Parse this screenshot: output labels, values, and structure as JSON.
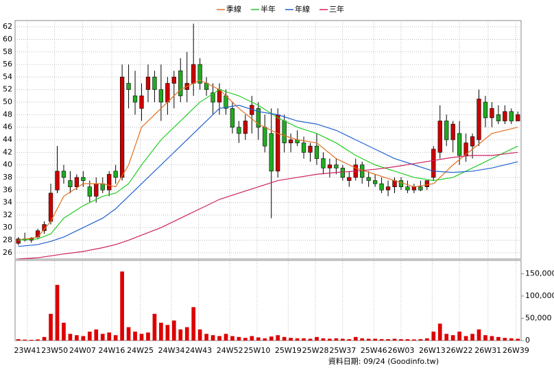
{
  "chart_data": {
    "type": "candlestick",
    "xlim": [
      -0.5,
      77.5
    ],
    "ylim": [
      25,
      63
    ],
    "yticks": [
      26,
      28,
      30,
      32,
      34,
      36,
      38,
      40,
      42,
      44,
      46,
      48,
      50,
      52,
      54,
      56,
      58,
      60,
      62
    ],
    "xticks": [
      {
        "value": 1.4,
        "label": "23W41"
      },
      {
        "value": 5.6,
        "label": "23W50"
      },
      {
        "value": 9.9,
        "label": "24W07"
      },
      {
        "value": 14.4,
        "label": "24W16"
      },
      {
        "value": 18.8,
        "label": "24W25"
      },
      {
        "value": 23.6,
        "label": "24W34"
      },
      {
        "value": 27.8,
        "label": "24W43"
      },
      {
        "value": 32.6,
        "label": "24W52"
      },
      {
        "value": 36.8,
        "label": "25W10"
      },
      {
        "value": 41.6,
        "label": "25W19"
      },
      {
        "value": 45.8,
        "label": "25W28"
      },
      {
        "value": 50.0,
        "label": "25W37"
      },
      {
        "value": 54.8,
        "label": "25W46"
      },
      {
        "value": 59.0,
        "label": "26W03"
      },
      {
        "value": 63.8,
        "label": "26W13"
      },
      {
        "value": 68.0,
        "label": "26W22"
      },
      {
        "value": 72.4,
        "label": "26W31"
      },
      {
        "value": 76.7,
        "label": "26W39"
      }
    ],
    "grid": true,
    "up_color": "#cc0000",
    "down_color": "#22aa22",
    "candles": {
      "open": [
        27.5,
        28.2,
        28.0,
        28.5,
        29.5,
        31,
        36,
        39,
        37.5,
        36.5,
        38,
        36.5,
        35,
        37,
        36,
        39,
        38,
        53,
        51,
        49,
        52,
        54,
        52,
        50,
        53,
        55,
        52,
        53,
        56,
        53,
        51.5,
        50,
        51,
        49,
        46,
        45,
        48,
        49,
        46,
        45,
        39,
        47,
        43.5,
        44,
        43.5,
        42,
        43,
        41,
        39.5,
        40,
        39.5,
        37.5,
        38,
        40,
        38,
        37.5,
        37,
        36,
        36.5,
        37.5,
        36.5,
        36,
        36.5,
        36.5,
        38,
        42,
        47,
        44,
        45,
        41.5,
        43,
        44,
        50,
        47.5,
        48,
        47,
        48.5,
        47
      ],
      "high": [
        28.5,
        29.2,
        28.5,
        29.8,
        31,
        37,
        43,
        40,
        39,
        38.5,
        39,
        37.5,
        38,
        38,
        39,
        40,
        56,
        56,
        55,
        53,
        56,
        55,
        56,
        54,
        55,
        57,
        58,
        62.5,
        57,
        54,
        53,
        53,
        52,
        50,
        47,
        48,
        51,
        50,
        48,
        49,
        49,
        48,
        45,
        45.5,
        44.5,
        43.5,
        45,
        42,
        41,
        41,
        40,
        39,
        41,
        40.5,
        39,
        38.5,
        38,
        37.5,
        38,
        38,
        37.5,
        37,
        37.5,
        37.5,
        43,
        49.5,
        48,
        47,
        47,
        45,
        45,
        52,
        51,
        50,
        49.5,
        49.5,
        49,
        48.5
      ],
      "low": [
        27.2,
        27.8,
        27.6,
        28.2,
        29,
        30.5,
        35.5,
        37,
        35.5,
        36,
        36.5,
        34,
        34,
        35.5,
        35,
        37,
        37.5,
        49,
        48,
        47,
        50,
        50,
        47,
        48,
        49,
        50,
        50,
        51,
        52,
        51,
        48,
        48,
        48,
        45,
        43.5,
        44,
        45,
        44,
        42,
        31.5,
        38,
        42,
        42,
        43,
        41,
        40.5,
        40,
        38.5,
        38,
        38.5,
        37.5,
        36.5,
        37.5,
        37,
        36.5,
        36.5,
        35.5,
        35,
        35.5,
        36,
        35.5,
        35.5,
        35.8,
        36,
        37.5,
        41,
        43,
        42,
        40,
        40.5,
        41,
        43,
        46,
        46,
        46.5,
        46.5,
        46.5,
        47
      ],
      "close": [
        28.2,
        28.0,
        28.3,
        29.5,
        30.5,
        35.5,
        39,
        38,
        36.5,
        38,
        37.5,
        35,
        37,
        36,
        38.5,
        38,
        54,
        52,
        50,
        51,
        54,
        52,
        50,
        53,
        54,
        51,
        53,
        56,
        53,
        52,
        50,
        52,
        49,
        46,
        45,
        47,
        49.5,
        46,
        43,
        39,
        48,
        43.5,
        44,
        43.5,
        42,
        43,
        41,
        39.5,
        40,
        39.5,
        38,
        38,
        40,
        38,
        37.5,
        37,
        36,
        36.5,
        37.5,
        36.5,
        36,
        36.5,
        36,
        37.5,
        42.5,
        47,
        44,
        46.5,
        41.5,
        43.5,
        44.5,
        50.5,
        47.5,
        49,
        47,
        48.5,
        47,
        48
      ]
    },
    "volume": {
      "color": "#dd0000",
      "ylim": [
        0,
        180000
      ],
      "yticks": [
        {
          "value": 0,
          "label": "0"
        },
        {
          "value": 50000,
          "label": "50,000"
        },
        {
          "value": 100000,
          "label": "100,000"
        },
        {
          "value": 150000,
          "label": "150,000"
        }
      ],
      "values": [
        3000,
        2000,
        1500,
        2500,
        8000,
        60000,
        125000,
        40000,
        15000,
        12000,
        10000,
        20000,
        25000,
        15000,
        18000,
        12000,
        155000,
        30000,
        20000,
        15000,
        18000,
        60000,
        40000,
        35000,
        45000,
        25000,
        30000,
        75000,
        25000,
        15000,
        12000,
        10000,
        15000,
        10000,
        8000,
        6000,
        10000,
        7000,
        5000,
        9000,
        12000,
        8000,
        6000,
        5000,
        5000,
        4000,
        8000,
        5000,
        4000,
        5000,
        4000,
        3000,
        8000,
        5000,
        4000,
        4000,
        3000,
        3000,
        4000,
        3000,
        3000,
        2500,
        3000,
        5000,
        20000,
        38000,
        15000,
        12000,
        20000,
        10000,
        15000,
        25000,
        12000,
        10000,
        8000,
        6000,
        5000,
        4000
      ]
    },
    "series": [
      {
        "name": "季線",
        "color": "#e07020",
        "x": [
          0,
          3,
          5,
          7,
          10,
          13,
          15,
          17,
          19,
          22,
          25,
          28,
          31,
          34,
          37,
          40,
          43,
          46,
          49,
          52,
          55,
          58,
          61,
          64,
          67,
          70,
          73,
          77
        ],
        "values": [
          28,
          28.5,
          31,
          35,
          37,
          37,
          36.5,
          40,
          46,
          49,
          52,
          53.5,
          52,
          49,
          46.5,
          45,
          44,
          43.5,
          41,
          39.5,
          38.5,
          37.5,
          36.5,
          37,
          40,
          42.5,
          45,
          46
        ]
      },
      {
        "name": "半年",
        "color": "#22cc22",
        "x": [
          0,
          3,
          5,
          7,
          10,
          13,
          15,
          17,
          19,
          22,
          25,
          28,
          31,
          34,
          37,
          40,
          43,
          46,
          49,
          52,
          55,
          58,
          61,
          64,
          67,
          70,
          73,
          77
        ],
        "values": [
          28,
          28.2,
          29,
          31.5,
          33.5,
          35,
          35.5,
          37,
          40,
          44,
          47,
          50,
          52,
          51,
          49.5,
          47.5,
          46,
          45,
          43.5,
          41.5,
          40,
          39,
          38,
          37.5,
          38,
          39.5,
          41,
          43
        ]
      },
      {
        "name": "年線",
        "color": "#2060d0",
        "x": [
          0,
          3,
          5,
          7,
          10,
          13,
          15,
          17,
          19,
          22,
          25,
          28,
          31,
          34,
          37,
          40,
          43,
          46,
          49,
          52,
          55,
          58,
          61,
          64,
          67,
          70,
          73,
          77
        ],
        "values": [
          27,
          27.3,
          27.8,
          28.5,
          30,
          31.5,
          33,
          35,
          37,
          40,
          43,
          46,
          49,
          49.5,
          48.5,
          48,
          47,
          46.5,
          45.5,
          44,
          42.5,
          41,
          40,
          39,
          38.8,
          39,
          39.5,
          40.5
        ]
      },
      {
        "name": "三年",
        "color": "#cc2060",
        "x": [
          0,
          3,
          5,
          7,
          10,
          13,
          15,
          17,
          19,
          22,
          25,
          28,
          31,
          34,
          37,
          40,
          43,
          46,
          49,
          52,
          55,
          58,
          61,
          64,
          67,
          70,
          73,
          77
        ],
        "values": [
          25,
          25.2,
          25.5,
          25.8,
          26.2,
          26.8,
          27.3,
          28,
          28.8,
          30,
          31.5,
          33,
          34.5,
          35.5,
          36.5,
          37.5,
          38,
          38.5,
          38.8,
          39,
          39.3,
          39.7,
          40.2,
          40.7,
          41.2,
          41.5,
          41.5,
          42
        ]
      }
    ],
    "footer": "資料日期: 09/24 (Goodinfo.tw)"
  }
}
